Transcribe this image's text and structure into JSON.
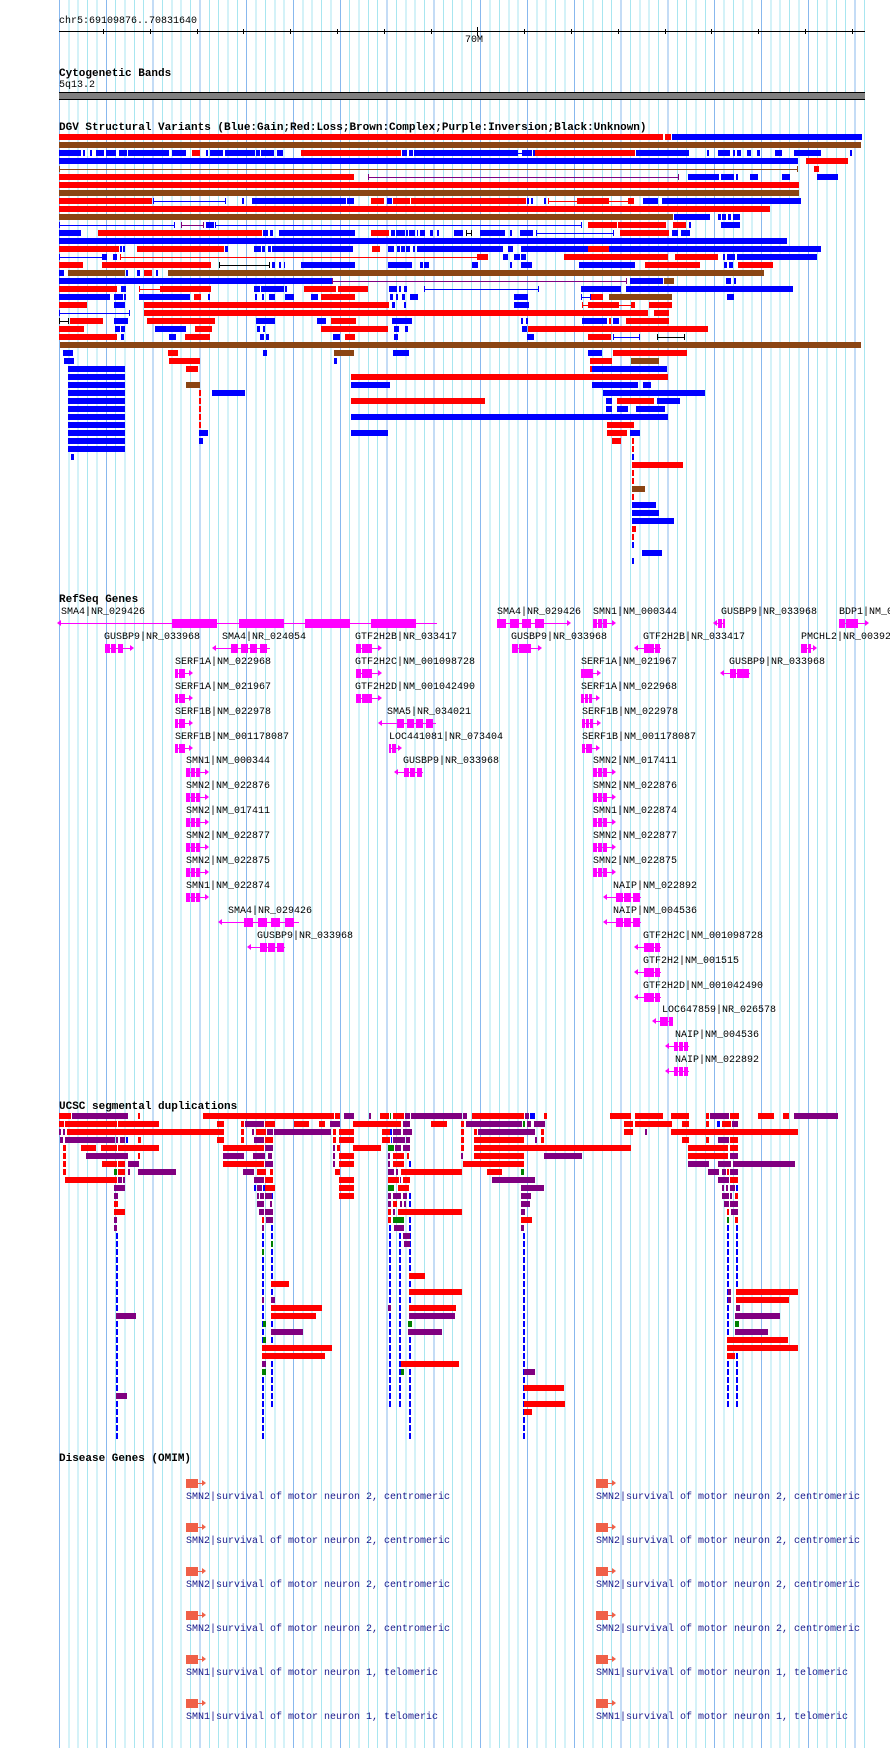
{
  "position": "chr5:69109876..70831640",
  "ruler": {
    "major_label": "70M"
  },
  "colors": {
    "gain": "#0000ff",
    "loss": "#ff0000",
    "complex": "#8b4513",
    "inversion": "#800080",
    "unknown": "#000000",
    "gene": "#ff00ff",
    "omim_gene": "#f06048",
    "omim_text": "#1a1a8c",
    "segdup_green": "#008000",
    "band": "#808080"
  },
  "cytoband": {
    "title": "Cytogenetic Bands",
    "band": "5q13.2"
  },
  "dgv": {
    "title": "DGV Structural Variants (Blue:Gain;Red:Loss;Brown:Complex;Purple:Inversion;Black:Unknown)"
  },
  "refseq": {
    "title": "RefSeq Genes",
    "genes": [
      "SMA4|NR_029426",
      "SMA4|NR_029426",
      "SMN1|NM_000344",
      "GUSBP9|NR_033968",
      "BDP1|NM_0",
      "GUSBP9|NR_033968",
      "SMA4|NR_024054",
      "GTF2H2B|NR_033417",
      "GUSBP9|NR_033968",
      "GTF2H2B|NR_033417",
      "PMCHL2|NR_00392",
      "SERF1A|NM_022968",
      "GTF2H2C|NM_001098728",
      "SERF1A|NM_021967",
      "GUSBP9|NR_033968",
      "SERF1A|NM_021967",
      "GTF2H2D|NM_001042490",
      "SERF1A|NM_022968",
      "SERF1B|NM_022978",
      "SMA5|NR_034021",
      "SERF1B|NM_022978",
      "SERF1B|NM_001178087",
      "LOC441081|NR_073404",
      "SERF1B|NM_001178087",
      "SMN1|NM_000344",
      "GUSBP9|NR_033968",
      "SMN2|NM_017411",
      "SMN2|NM_022876",
      "SMN2|NM_022876",
      "SMN2|NM_017411",
      "SMN1|NM_022874",
      "SMN2|NM_022877",
      "SMN2|NM_022877",
      "SMN2|NM_022875",
      "SMN2|NM_022875",
      "SMN1|NM_022874",
      "NAIP|NM_022892",
      "SMA4|NR_029426",
      "NAIP|NM_004536",
      "GUSBP9|NR_033968",
      "GTF2H2C|NM_001098728",
      "GTF2H2|NM_001515",
      "GTF2H2D|NM_001042490",
      "LOC647859|NR_026578",
      "NAIP|NM_004536",
      "NAIP|NM_022892"
    ]
  },
  "segdup": {
    "title": "UCSC segmental duplications"
  },
  "omim": {
    "title": "Disease Genes (OMIM)",
    "left": [
      "SMN2|survival of motor neuron 2, centromeric",
      "SMN2|survival of motor neuron 2, centromeric",
      "SMN2|survival of motor neuron 2, centromeric",
      "SMN2|survival of motor neuron 2, centromeric",
      "SMN1|survival of motor neuron 1, telomeric",
      "SMN1|survival of motor neuron 1, telomeric"
    ],
    "right": [
      "SMN2|survival of motor neuron 2, centromeric",
      "SMN2|survival of motor neuron 2, centromeric",
      "SMN2|survival of motor neuron 2, centromeric",
      "SMN2|survival of motor neuron 2, centromeric",
      "SMN1|survival of motor neuron 1, telomeric",
      "SMN1|survival of motor neuron 1, telomeric"
    ]
  }
}
